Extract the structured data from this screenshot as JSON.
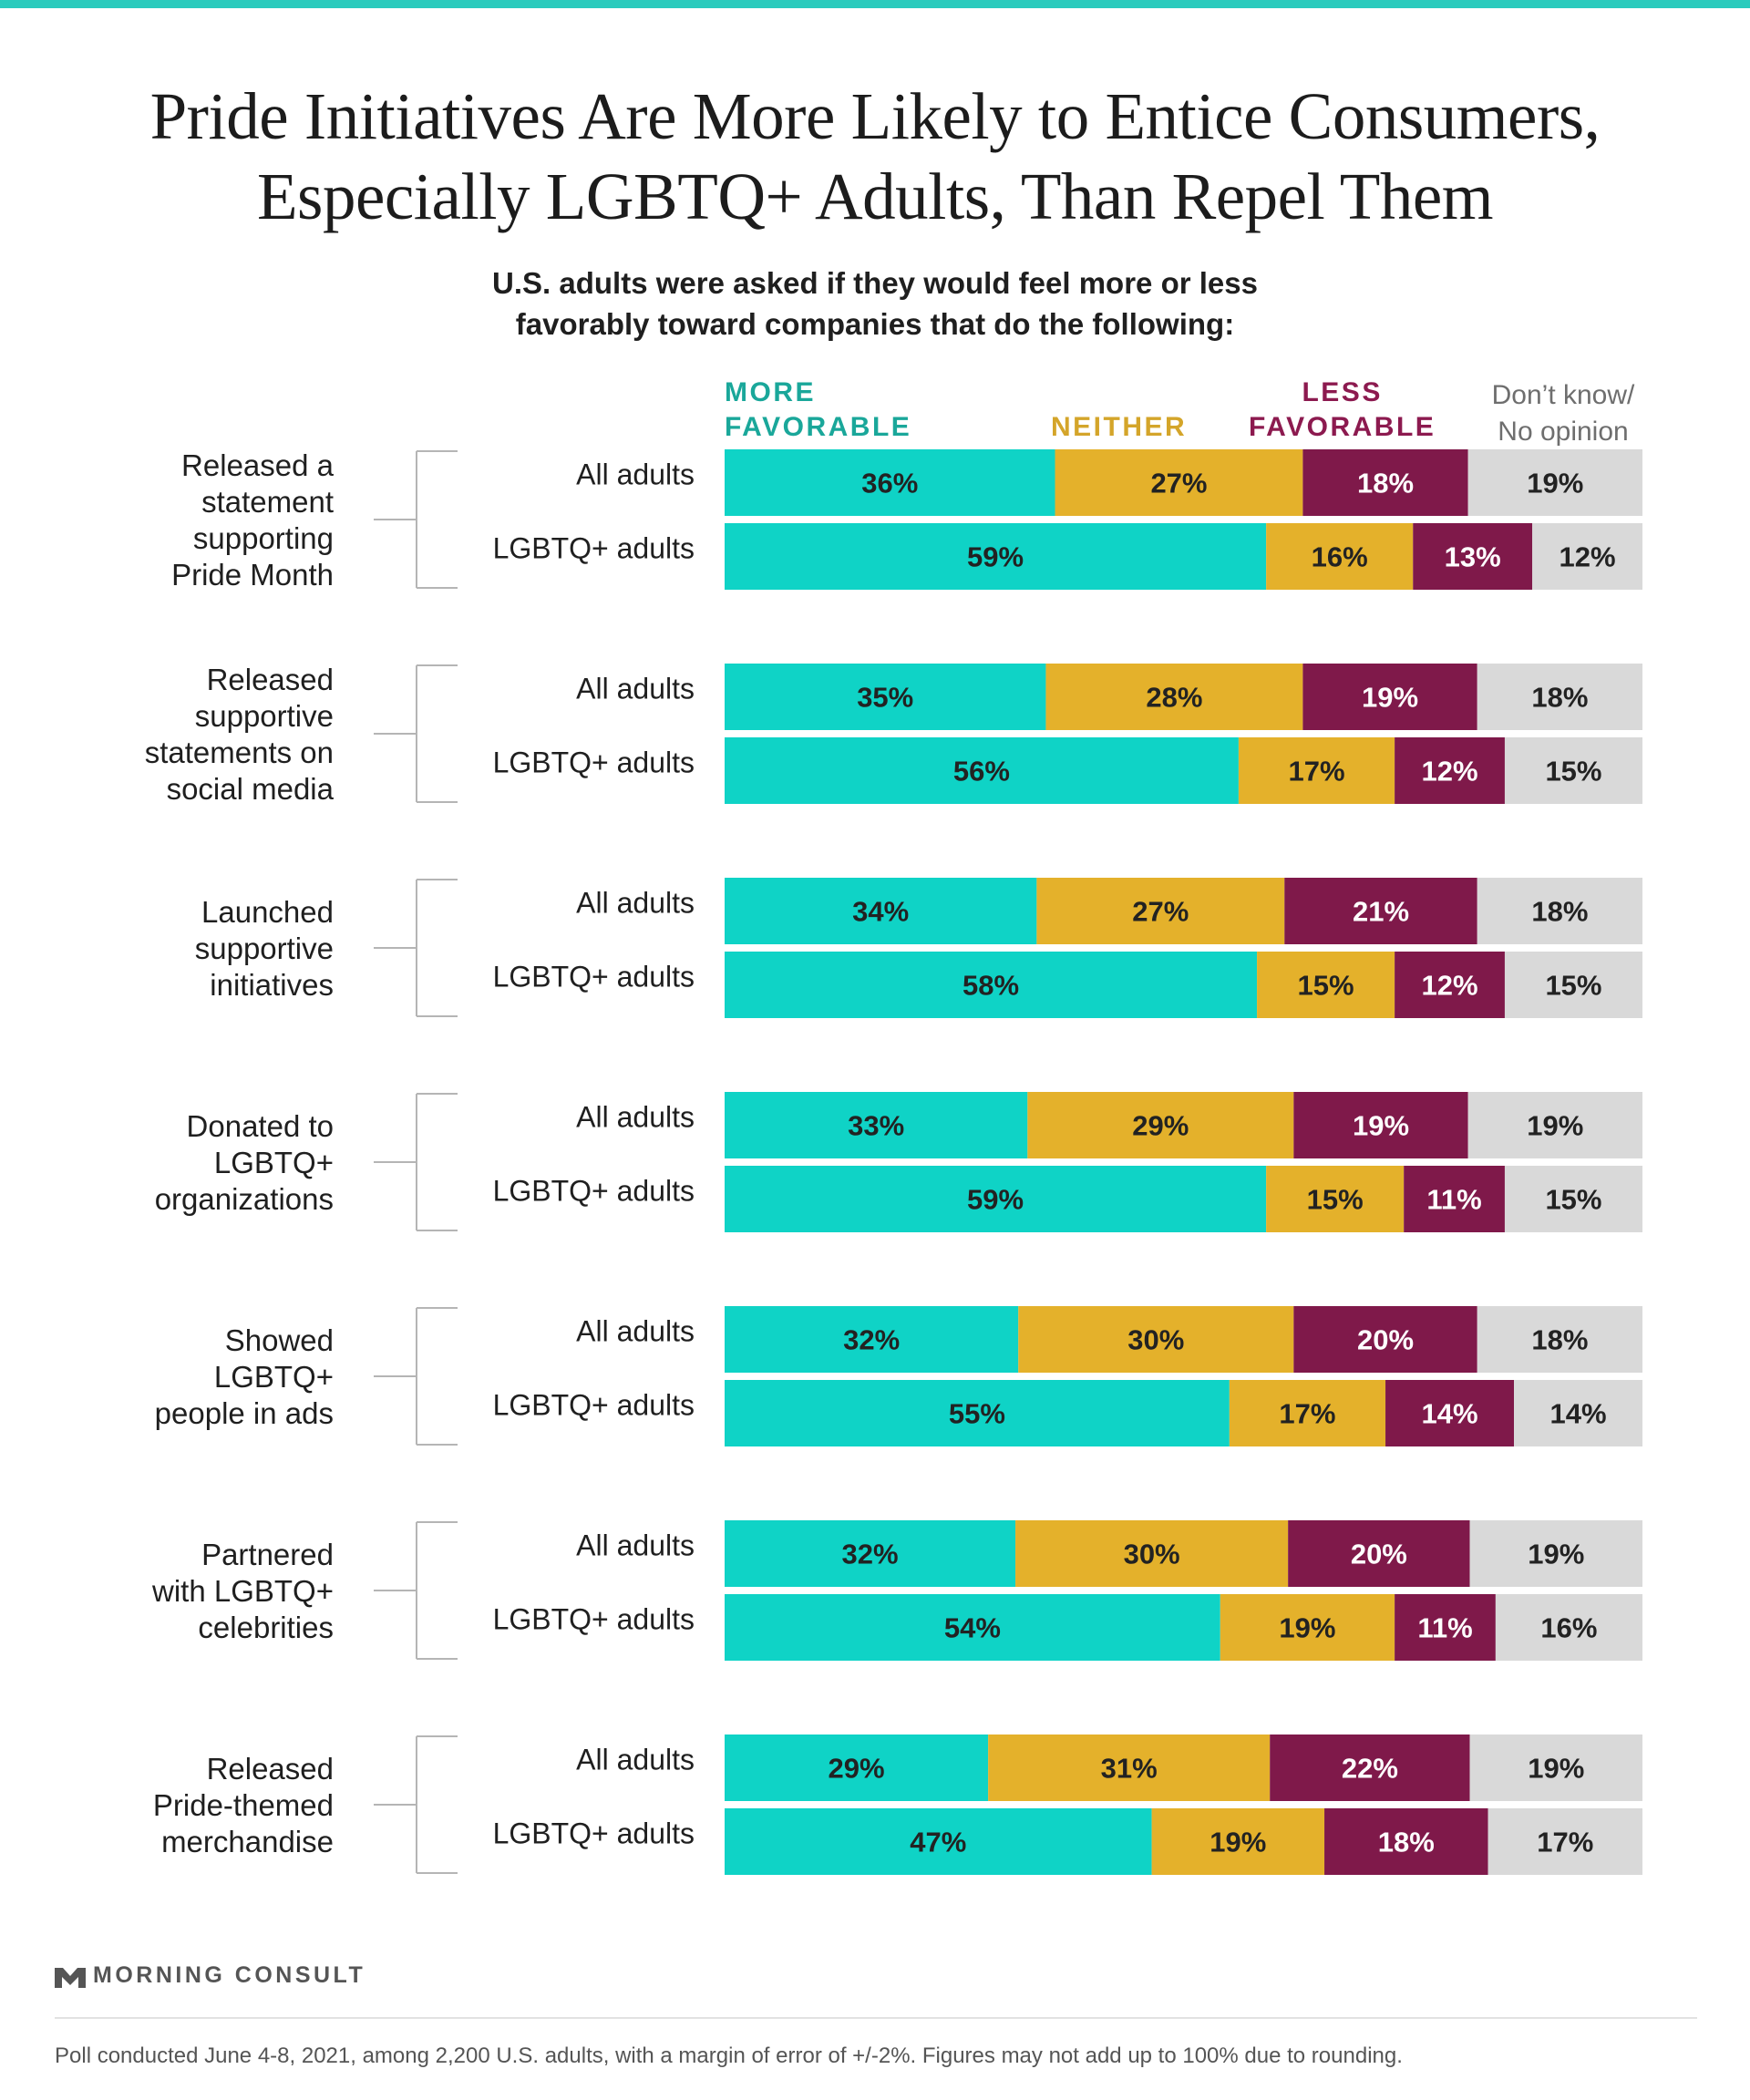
{
  "title_line1": "Pride Initiatives Are More Likely to Entice Consumers,",
  "title_line2": "Especially LGBTQ+ Adults, Than Repel Them",
  "subtitle_line1": "U.S. adults were asked if they would feel more or less",
  "subtitle_line2": "favorably toward companies that do the following:",
  "legend": {
    "more_line1": "MORE",
    "more_line2": "FAVORABLE",
    "neither": "NEITHER",
    "less_line1": "LESS",
    "less_line2": "FAVORABLE",
    "dk_line1": "Don’t know/",
    "dk_line2": "No opinion"
  },
  "colors": {
    "more_favorable": "#0fd3c6",
    "neither": "#e4b12b",
    "less_favorable": "#7f194a",
    "dont_know": "#d9d9d9",
    "more_label": "#1aa79a",
    "neither_label": "#d4a52a",
    "less_label": "#8c1a4f",
    "accent_rule": "#2bcbbd"
  },
  "chart_data": {
    "type": "bar",
    "orientation": "horizontal",
    "stacked": true,
    "xlim": [
      0,
      100
    ],
    "unit": "%",
    "series_names": [
      "MORE FAVORABLE",
      "NEITHER",
      "LESS FAVORABLE",
      "Don’t know/No opinion"
    ],
    "groups": [
      {
        "label": [
          "Released a",
          "statement",
          "supporting",
          "Pride Month"
        ],
        "rows": [
          {
            "name": "All adults",
            "values": [
              36,
              27,
              18,
              19
            ]
          },
          {
            "name": "LGBTQ+ adults",
            "values": [
              59,
              16,
              13,
              12
            ]
          }
        ]
      },
      {
        "label": [
          "Released",
          "supportive",
          "statements on",
          "social media"
        ],
        "rows": [
          {
            "name": "All adults",
            "values": [
              35,
              28,
              19,
              18
            ]
          },
          {
            "name": "LGBTQ+ adults",
            "values": [
              56,
              17,
              12,
              15
            ]
          }
        ]
      },
      {
        "label": [
          "Launched",
          "supportive",
          "initiatives"
        ],
        "rows": [
          {
            "name": "All adults",
            "values": [
              34,
              27,
              21,
              18
            ]
          },
          {
            "name": "LGBTQ+ adults",
            "values": [
              58,
              15,
              12,
              15
            ]
          }
        ]
      },
      {
        "label": [
          "Donated to",
          "LGBTQ+",
          "organizations"
        ],
        "rows": [
          {
            "name": "All adults",
            "values": [
              33,
              29,
              19,
              19
            ]
          },
          {
            "name": "LGBTQ+ adults",
            "values": [
              59,
              15,
              11,
              15
            ]
          }
        ]
      },
      {
        "label": [
          "Showed",
          "LGBTQ+",
          "people in ads"
        ],
        "rows": [
          {
            "name": "All adults",
            "values": [
              32,
              30,
              20,
              18
            ]
          },
          {
            "name": "LGBTQ+ adults",
            "values": [
              55,
              17,
              14,
              14
            ]
          }
        ]
      },
      {
        "label": [
          "Partnered",
          "with LGBTQ+",
          "celebrities"
        ],
        "rows": [
          {
            "name": "All adults",
            "values": [
              32,
              30,
              20,
              19
            ]
          },
          {
            "name": "LGBTQ+ adults",
            "values": [
              54,
              19,
              11,
              16
            ]
          }
        ]
      },
      {
        "label": [
          "Released",
          "Pride-themed",
          "merchandise"
        ],
        "rows": [
          {
            "name": "All adults",
            "values": [
              29,
              31,
              22,
              19
            ]
          },
          {
            "name": "LGBTQ+ adults",
            "values": [
              47,
              19,
              18,
              17
            ]
          }
        ]
      }
    ]
  },
  "logo_text": "MORNING CONSULT",
  "footnote": "Poll conducted June 4-8, 2021, among 2,200 U.S. adults, with a margin of error of +/-2%. Figures may not add up to 100% due to rounding."
}
